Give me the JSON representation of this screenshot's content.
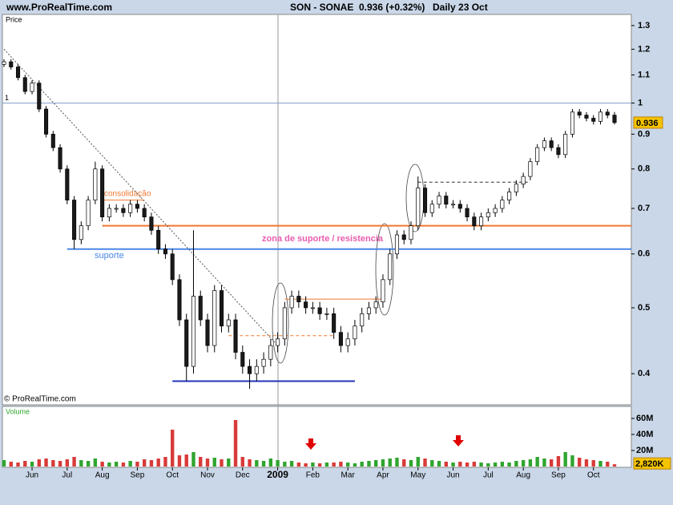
{
  "header": {
    "site": "www.ProRealTime.com",
    "symbol": "SON - SONAE",
    "quote": "0.936 (+0.32%)",
    "period": "Daily  23 Oct"
  },
  "chart_data": {
    "type": "candlestick",
    "price_label": "Price",
    "volume_label": "Volume",
    "copyright": "© ProRealTime.com",
    "categories": [
      null,
      null,
      null,
      null,
      "Jun",
      null,
      null,
      null,
      null,
      "Jul",
      null,
      null,
      null,
      null,
      "Aug",
      null,
      null,
      null,
      null,
      "Sep",
      null,
      null,
      null,
      null,
      "Oct",
      null,
      null,
      null,
      null,
      "Nov",
      null,
      null,
      null,
      null,
      "Dec",
      null,
      null,
      null,
      null,
      "2009",
      null,
      null,
      null,
      null,
      "Feb",
      null,
      null,
      null,
      null,
      "Mar",
      null,
      null,
      null,
      null,
      "Apr",
      null,
      null,
      null,
      null,
      "May",
      null,
      null,
      null,
      null,
      "Jun",
      null,
      null,
      null,
      null,
      "Jul",
      null,
      null,
      null,
      null,
      "Aug",
      null,
      null,
      null,
      null,
      "Sep",
      null,
      null,
      null,
      null,
      "Oct",
      null,
      null,
      null
    ],
    "series": [
      {
        "name": "SON - SONAE",
        "up_color": "#ffffff",
        "down_color": "#1a1a1a",
        "wick_color": "#000000",
        "open": [
          1.14,
          1.15,
          1.13,
          1.09,
          1.04,
          1.07,
          0.98,
          0.9,
          0.86,
          0.8,
          0.72,
          0.63,
          0.66,
          0.72,
          0.8,
          0.68,
          0.7,
          0.7,
          0.69,
          0.71,
          0.7,
          0.68,
          0.65,
          0.61,
          0.6,
          0.55,
          0.48,
          0.41,
          0.52,
          0.48,
          0.44,
          0.53,
          0.47,
          0.48,
          0.43,
          0.41,
          0.4,
          0.41,
          0.42,
          0.44,
          0.45,
          0.5,
          0.52,
          0.51,
          0.5,
          0.5,
          0.49,
          0.49,
          0.46,
          0.44,
          0.45,
          0.47,
          0.49,
          0.5,
          0.51,
          0.55,
          0.6,
          0.64,
          0.63,
          0.66,
          0.75,
          0.69,
          0.71,
          0.73,
          0.71,
          0.71,
          0.7,
          0.68,
          0.66,
          0.68,
          0.69,
          0.7,
          0.72,
          0.74,
          0.76,
          0.78,
          0.82,
          0.86,
          0.88,
          0.86,
          0.84,
          0.9,
          0.97,
          0.96,
          0.95,
          0.94,
          0.97,
          0.96
        ],
        "high": [
          1.16,
          1.16,
          1.14,
          1.1,
          1.08,
          1.08,
          0.99,
          0.91,
          0.87,
          0.81,
          0.73,
          0.67,
          0.73,
          0.82,
          0.81,
          0.71,
          0.71,
          0.71,
          0.72,
          0.72,
          0.71,
          0.69,
          0.66,
          0.62,
          0.61,
          0.56,
          0.49,
          0.65,
          0.53,
          0.49,
          0.54,
          0.54,
          0.49,
          0.49,
          0.44,
          0.42,
          0.42,
          0.43,
          0.45,
          0.46,
          0.51,
          0.53,
          0.53,
          0.52,
          0.51,
          0.51,
          0.5,
          0.5,
          0.47,
          0.46,
          0.48,
          0.5,
          0.51,
          0.52,
          0.56,
          0.61,
          0.65,
          0.65,
          0.67,
          0.78,
          0.76,
          0.72,
          0.74,
          0.74,
          0.72,
          0.72,
          0.71,
          0.69,
          0.69,
          0.7,
          0.71,
          0.73,
          0.75,
          0.77,
          0.79,
          0.83,
          0.87,
          0.89,
          0.89,
          0.87,
          0.91,
          0.98,
          0.98,
          0.97,
          0.96,
          0.98,
          0.98,
          0.97
        ],
        "low": [
          1.13,
          1.12,
          1.08,
          1.03,
          1.03,
          0.97,
          0.89,
          0.85,
          0.79,
          0.71,
          0.61,
          0.62,
          0.65,
          0.71,
          0.67,
          0.67,
          0.69,
          0.68,
          0.68,
          0.69,
          0.67,
          0.64,
          0.6,
          0.59,
          0.54,
          0.47,
          0.39,
          0.4,
          0.47,
          0.43,
          0.43,
          0.46,
          0.46,
          0.42,
          0.4,
          0.38,
          0.39,
          0.4,
          0.41,
          0.43,
          0.44,
          0.49,
          0.5,
          0.49,
          0.49,
          0.48,
          0.48,
          0.45,
          0.43,
          0.43,
          0.44,
          0.46,
          0.48,
          0.49,
          0.5,
          0.54,
          0.59,
          0.62,
          0.62,
          0.65,
          0.68,
          0.68,
          0.7,
          0.7,
          0.7,
          0.69,
          0.67,
          0.65,
          0.65,
          0.67,
          0.68,
          0.69,
          0.71,
          0.73,
          0.75,
          0.77,
          0.81,
          0.85,
          0.85,
          0.83,
          0.83,
          0.89,
          0.95,
          0.94,
          0.93,
          0.93,
          0.95,
          0.93
        ],
        "close": [
          1.15,
          1.13,
          1.09,
          1.04,
          1.07,
          0.98,
          0.9,
          0.86,
          0.8,
          0.72,
          0.63,
          0.66,
          0.72,
          0.8,
          0.68,
          0.7,
          0.7,
          0.69,
          0.71,
          0.7,
          0.68,
          0.65,
          0.61,
          0.6,
          0.55,
          0.48,
          0.41,
          0.52,
          0.48,
          0.44,
          0.53,
          0.47,
          0.48,
          0.43,
          0.41,
          0.4,
          0.41,
          0.42,
          0.44,
          0.45,
          0.5,
          0.52,
          0.51,
          0.5,
          0.5,
          0.49,
          0.49,
          0.46,
          0.44,
          0.45,
          0.47,
          0.49,
          0.5,
          0.51,
          0.55,
          0.6,
          0.64,
          0.63,
          0.66,
          0.75,
          0.69,
          0.71,
          0.73,
          0.71,
          0.71,
          0.7,
          0.68,
          0.66,
          0.68,
          0.69,
          0.7,
          0.72,
          0.74,
          0.76,
          0.78,
          0.82,
          0.86,
          0.88,
          0.86,
          0.84,
          0.9,
          0.97,
          0.96,
          0.95,
          0.94,
          0.97,
          0.96,
          0.936
        ],
        "volume": [
          8,
          6,
          5,
          7,
          6,
          9,
          10,
          8,
          7,
          9,
          12,
          8,
          7,
          10,
          6,
          5,
          6,
          5,
          7,
          6,
          9,
          8,
          10,
          12,
          46,
          14,
          15,
          18,
          12,
          10,
          11,
          9,
          10,
          58,
          12,
          9,
          8,
          7,
          10,
          8,
          6,
          7,
          5,
          4,
          5,
          4,
          5,
          5,
          6,
          5,
          4,
          6,
          7,
          8,
          9,
          10,
          11,
          9,
          8,
          12,
          10,
          8,
          7,
          6,
          5,
          6,
          5,
          6,
          5,
          4,
          5,
          6,
          5,
          7,
          8,
          9,
          12,
          10,
          9,
          13,
          18,
          14,
          11,
          9,
          8,
          7,
          6,
          2.82
        ],
        "volume_up_color": "#2fa52f",
        "volume_down_color": "#d83a3a"
      }
    ],
    "ylog": true,
    "ylim": [
      0.36,
      1.35
    ],
    "yticks": [
      0.4,
      0.5,
      0.6,
      0.7,
      0.8,
      0.9,
      1,
      1.1,
      1.2,
      1.3
    ],
    "vylim": [
      0,
      75
    ],
    "vyticks": [
      {
        "value": 20,
        "label": "20M"
      },
      {
        "value": 40,
        "label": "40M"
      },
      {
        "value": 60,
        "label": "60M"
      }
    ],
    "current_volume": {
      "value": 2.82,
      "label": "2,820K"
    },
    "reference_line": 1,
    "levels": [
      {
        "value": 0.66,
        "color": "#f07830",
        "start": 14,
        "end": 87,
        "style": "thick"
      },
      {
        "value": 0.61,
        "color": "#4a86e8",
        "start": 9,
        "end": 87,
        "style": "thick"
      },
      {
        "value": 0.39,
        "color": "#2233bb",
        "start": 24,
        "end": 50,
        "style": "thick"
      },
      {
        "value": 0.72,
        "color": "#f07830",
        "start": 14,
        "end": 20,
        "style": "thin"
      },
      {
        "value": 0.515,
        "color": "#f07830",
        "start": 40,
        "end": 54,
        "style": "thin"
      },
      {
        "value": 0.455,
        "color": "#f07830",
        "start": 32,
        "end": 47,
        "style": "dashed"
      },
      {
        "value": 0.765,
        "color": "#333333",
        "start": 59,
        "end": 75,
        "style": "dashed"
      }
    ],
    "trendline": {
      "start": 0,
      "start_value": 1.2,
      "end": 39,
      "end_value": 0.44
    },
    "annotations": {
      "consolidation": "consolidação",
      "support": "suporte",
      "zone": "zona de suporte / resistencia"
    }
  }
}
